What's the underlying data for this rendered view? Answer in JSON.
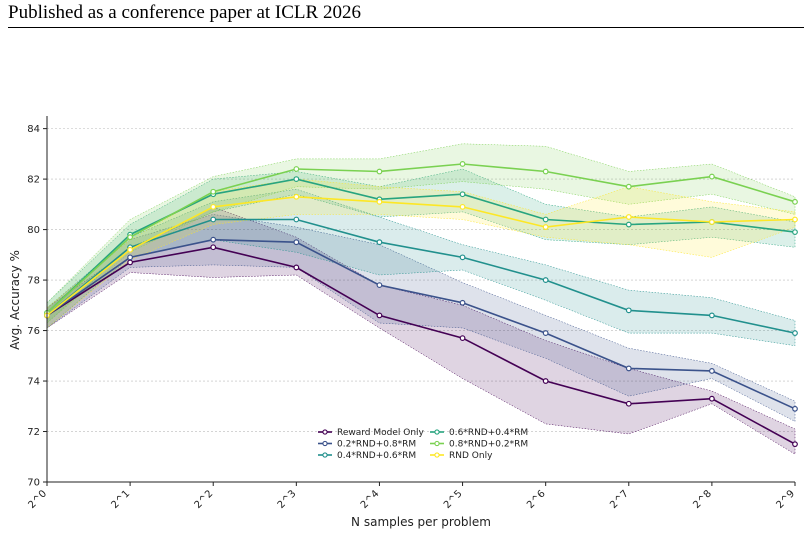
{
  "header": {
    "text": "Published as a conference paper at ICLR 2026"
  },
  "chart_data": {
    "type": "line",
    "title": "",
    "xlabel": "N samples per problem",
    "ylabel": "Avg. Accuracy %",
    "x_ticks": [
      "2^0",
      "2^1",
      "2^2",
      "2^3",
      "2^4",
      "2^5",
      "2^6",
      "2^7",
      "2^8",
      "2^9"
    ],
    "y_ticks": [
      "70",
      "72",
      "74",
      "76",
      "78",
      "80",
      "82",
      "84"
    ],
    "ylim": [
      70,
      84.5
    ],
    "grid": "horizontal-dashed",
    "legend_position": "lower-center",
    "series": [
      {
        "name": "Reward Model Only",
        "color": "#440154",
        "values": [
          76.6,
          78.7,
          79.3,
          78.5,
          76.6,
          75.7,
          74.0,
          73.1,
          73.3,
          71.5
        ],
        "lower": [
          76.1,
          78.3,
          78.1,
          78.2,
          76.1,
          74.1,
          72.3,
          71.9,
          73.1,
          71.1
        ],
        "upper": [
          76.9,
          79.2,
          80.9,
          79.7,
          77.8,
          77.0,
          75.6,
          74.5,
          73.6,
          72.1
        ]
      },
      {
        "name": "0.2*RND+0.8*RM",
        "color": "#3b528b",
        "values": [
          76.6,
          78.9,
          79.6,
          79.5,
          77.8,
          77.1,
          75.9,
          74.5,
          74.4,
          72.9
        ],
        "lower": [
          76.1,
          78.5,
          78.6,
          78.5,
          76.3,
          76.1,
          74.9,
          73.4,
          74.1,
          72.4
        ],
        "upper": [
          76.9,
          79.6,
          80.6,
          80.1,
          79.4,
          77.9,
          76.6,
          75.3,
          74.7,
          73.2
        ]
      },
      {
        "name": "0.4*RND+0.6*RM",
        "color": "#21908d",
        "values": [
          76.6,
          79.3,
          80.4,
          80.4,
          79.5,
          78.9,
          78.0,
          76.8,
          76.6,
          75.9
        ],
        "lower": [
          76.1,
          78.9,
          79.6,
          79.1,
          78.2,
          78.4,
          77.2,
          75.9,
          75.9,
          75.4
        ],
        "upper": [
          76.9,
          79.7,
          81.1,
          81.6,
          80.5,
          79.4,
          78.6,
          77.6,
          77.3,
          76.4
        ]
      },
      {
        "name": "0.6*RND+0.4*RM",
        "color": "#27a47f",
        "values": [
          76.7,
          79.8,
          81.4,
          82.0,
          81.2,
          81.4,
          80.4,
          80.2,
          80.3,
          79.9
        ],
        "lower": [
          76.3,
          79.3,
          80.7,
          81.4,
          80.5,
          80.7,
          79.6,
          79.4,
          79.7,
          79.3
        ],
        "upper": [
          77.1,
          80.2,
          82.0,
          82.3,
          81.7,
          82.4,
          81.0,
          80.5,
          80.9,
          80.3
        ]
      },
      {
        "name": "0.8*RND+0.2*RM",
        "color": "#7ad151",
        "values": [
          76.7,
          79.7,
          81.5,
          82.4,
          82.3,
          82.6,
          82.3,
          81.7,
          82.1,
          81.1
        ],
        "lower": [
          76.3,
          79.1,
          80.7,
          81.7,
          81.6,
          81.9,
          81.6,
          81.0,
          81.4,
          80.6
        ],
        "upper": [
          77.1,
          80.4,
          82.1,
          82.8,
          82.8,
          83.4,
          83.3,
          82.3,
          82.6,
          81.3
        ]
      },
      {
        "name": "RND Only",
        "color": "#fde725",
        "values": [
          76.6,
          79.2,
          80.9,
          81.3,
          81.1,
          80.9,
          80.1,
          80.5,
          80.3,
          80.4
        ],
        "lower": [
          76.1,
          78.8,
          80.2,
          80.6,
          80.6,
          80.4,
          79.7,
          79.4,
          78.9,
          80.1
        ],
        "upper": [
          76.9,
          79.6,
          81.5,
          82.0,
          81.7,
          81.5,
          80.6,
          81.7,
          81.1,
          80.7
        ]
      }
    ]
  }
}
